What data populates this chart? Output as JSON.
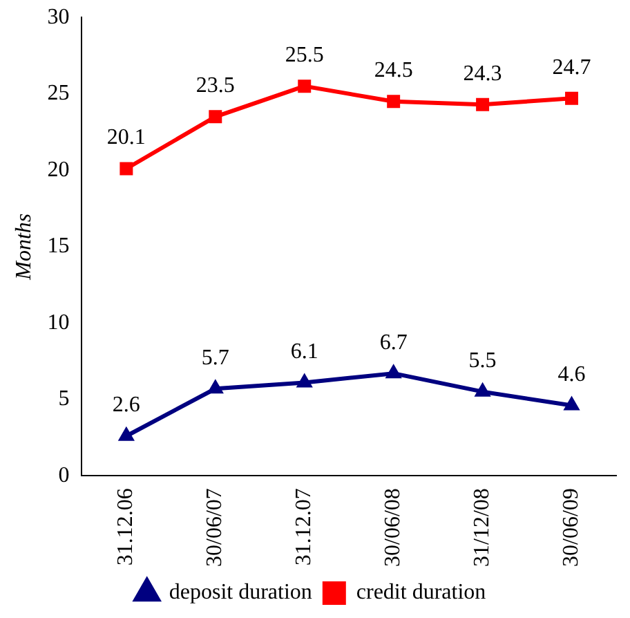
{
  "chart_data": {
    "type": "line",
    "ylabel": "Months",
    "categories": [
      "31.12.06",
      "30/06/07",
      "31.12.07",
      "30/06/08",
      "31/12/08",
      "30/06/09"
    ],
    "series": [
      {
        "name": "deposit duration",
        "color": "#000080",
        "marker": "triangle",
        "values": [
          2.6,
          5.7,
          6.1,
          6.7,
          5.5,
          4.6
        ]
      },
      {
        "name": "credit duration",
        "color": "#ff0000",
        "marker": "square",
        "values": [
          20.1,
          23.5,
          25.5,
          24.5,
          24.3,
          24.7
        ]
      }
    ],
    "ylim": [
      0,
      30
    ],
    "yticks": [
      0,
      5,
      10,
      15,
      20,
      25,
      30
    ],
    "grid": false,
    "legend": "bottom",
    "data_labels": true,
    "line_style": "solid"
  }
}
